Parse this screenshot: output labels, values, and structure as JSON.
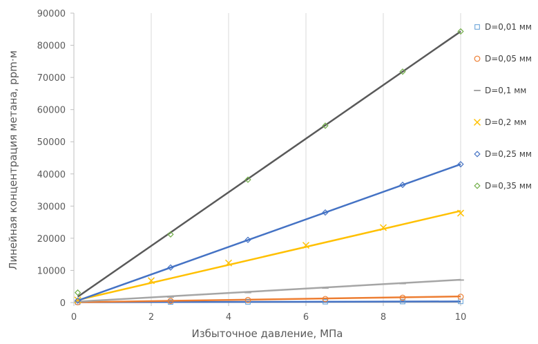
{
  "chart_data": {
    "type": "scatter",
    "title": "",
    "xlabel": "Избыточное давление, МПа",
    "ylabel": "Линейная концентрация метана, ppm·м",
    "xlim": [
      0,
      10
    ],
    "ylim": [
      0,
      90000
    ],
    "x_ticks": [
      0,
      2,
      4,
      6,
      8,
      10
    ],
    "y_ticks": [
      0,
      10000,
      20000,
      30000,
      40000,
      50000,
      60000,
      70000,
      80000,
      90000
    ],
    "grid": "vertical",
    "legend_position": "right",
    "series": [
      {
        "name": "D=0,01 мм",
        "marker": "square",
        "color": "#5B9BD5",
        "x": [
          0.1,
          2.5,
          4.5,
          6.5,
          8.5,
          10
        ],
        "y": [
          100,
          150,
          200,
          250,
          300,
          350
        ],
        "trendline": {
          "x": [
            0.1,
            10
          ],
          "y": [
            100,
            350
          ],
          "color": "#4472C4"
        }
      },
      {
        "name": "D=0,05 мм",
        "marker": "circle",
        "color": "#ED7D31",
        "x": [
          0.1,
          2.5,
          4.5,
          6.5,
          8.5,
          10
        ],
        "y": [
          100,
          500,
          800,
          1100,
          1500,
          1800
        ],
        "trendline": {
          "x": [
            0.1,
            10
          ],
          "y": [
            100,
            1900
          ],
          "color": "#ED7D31"
        }
      },
      {
        "name": "D=0,1 мм",
        "marker": "dash",
        "color": "#A5A5A5",
        "x": [
          0.1,
          2.5,
          4.5,
          6.5,
          8.5,
          10
        ],
        "y": [
          300,
          1700,
          3100,
          4500,
          5900,
          7000
        ],
        "trendline": {
          "x": [
            0.1,
            10
          ],
          "y": [
            300,
            7100
          ],
          "color": "#A5A5A5"
        }
      },
      {
        "name": "D=0,2 мм",
        "marker": "x",
        "color": "#FFC000",
        "x": [
          0.1,
          2,
          4,
          6,
          8,
          10
        ],
        "y": [
          800,
          6800,
          12300,
          17800,
          23300,
          27800
        ],
        "trendline": {
          "x": [
            0.1,
            10
          ],
          "y": [
            800,
            28500
          ],
          "color": "#FFC000"
        }
      },
      {
        "name": "D=0,25 мм",
        "marker": "diamond",
        "color": "#4472C4",
        "x": [
          0.1,
          2.5,
          4.5,
          6.5,
          8.5,
          10
        ],
        "y": [
          600,
          10900,
          19500,
          28000,
          36600,
          43000
        ],
        "trendline": {
          "x": [
            0.1,
            10
          ],
          "y": [
            600,
            43000
          ],
          "color": "#4472C4"
        }
      },
      {
        "name": "D=0,35 мм",
        "marker": "diamond",
        "color": "#70AD47",
        "x": [
          0.1,
          2.5,
          4.5,
          6.5,
          8.5,
          10
        ],
        "y": [
          3100,
          21200,
          38200,
          55000,
          71800,
          84300
        ],
        "trendline": {
          "x": [
            0.1,
            10
          ],
          "y": [
            1800,
            84300
          ],
          "color": "#595959"
        }
      }
    ]
  }
}
